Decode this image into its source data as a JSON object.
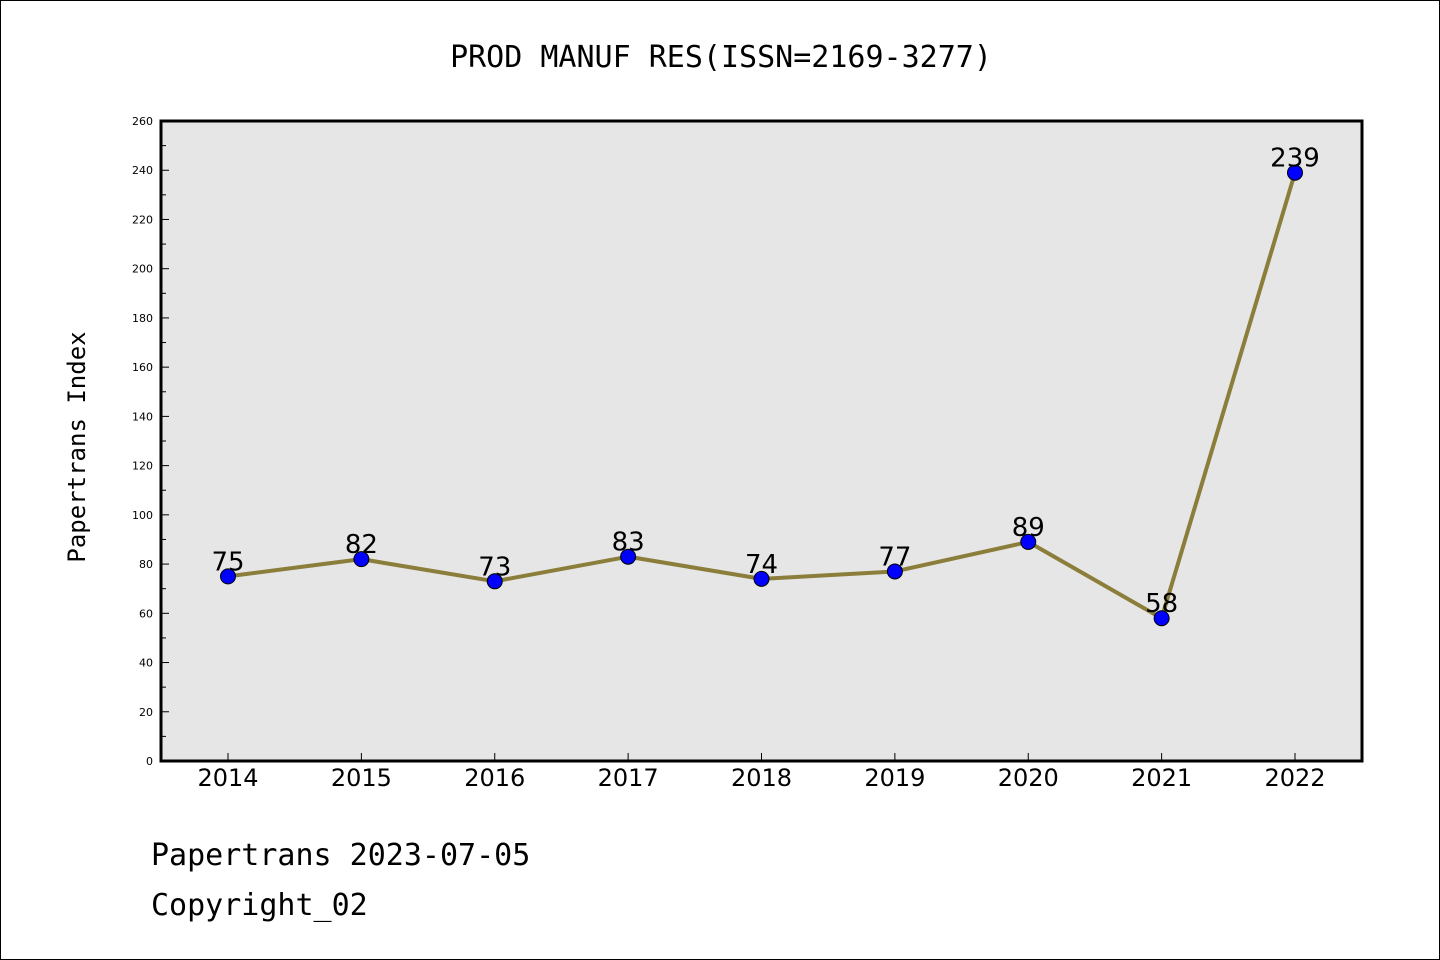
{
  "chart_data": {
    "type": "line",
    "title": "PROD MANUF RES(ISSN=2169-3277)",
    "xlabel": "",
    "ylabel": "Papertrans Index",
    "categories": [
      "2014",
      "2015",
      "2016",
      "2017",
      "2018",
      "2019",
      "2020",
      "2021",
      "2022"
    ],
    "values": [
      75,
      82,
      73,
      83,
      74,
      77,
      89,
      58,
      239
    ],
    "ylim": [
      0,
      260
    ],
    "yticks": [
      "0",
      "20",
      "40",
      "60",
      "80",
      "100",
      "120",
      "140",
      "160",
      "180",
      "200",
      "220",
      "240",
      "260"
    ],
    "grid": false,
    "line_color": "#8B7D3A",
    "marker_color": "#0000FF",
    "plot_background": "#E6E6E6"
  },
  "footer": {
    "line1": "Papertrans 2023-07-05",
    "line2": "Copyright_02"
  }
}
